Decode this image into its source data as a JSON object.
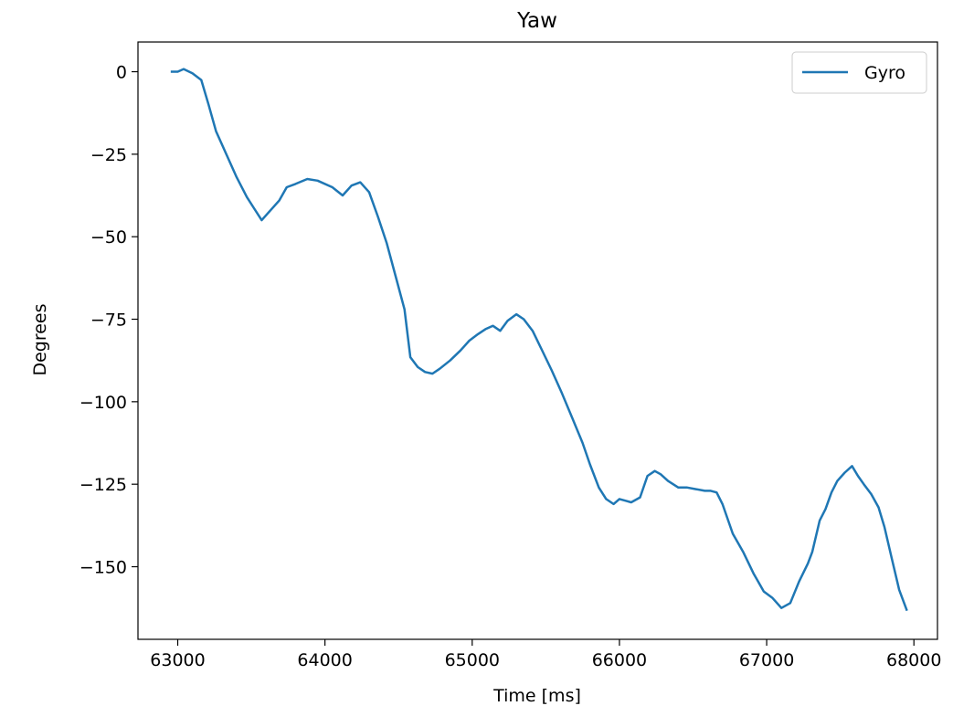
{
  "chart_data": {
    "type": "line",
    "title": "Yaw",
    "xlabel": "Time [ms]",
    "ylabel": "Degrees",
    "xlim": [
      62730,
      68160
    ],
    "ylim": [
      -172,
      9
    ],
    "xticks": [
      63000,
      64000,
      65000,
      66000,
      67000,
      68000
    ],
    "xtick_labels": [
      "63000",
      "64000",
      "65000",
      "66000",
      "67000",
      "68000"
    ],
    "yticks": [
      0,
      -25,
      -50,
      -75,
      -100,
      -125,
      -150
    ],
    "ytick_labels": [
      "0",
      "−25",
      "−50",
      "−75",
      "−100",
      "−125",
      "−150"
    ],
    "grid": false,
    "legend_position": "top-right",
    "series": [
      {
        "name": "Gyro",
        "color": "#1f77b4",
        "x": [
          62960,
          63000,
          63040,
          63100,
          63160,
          63210,
          63260,
          63330,
          63400,
          63470,
          63520,
          63570,
          63630,
          63690,
          63740,
          63800,
          63880,
          63950,
          64050,
          64120,
          64180,
          64240,
          64300,
          64360,
          64420,
          64480,
          64540,
          64580,
          64630,
          64680,
          64730,
          64780,
          64850,
          64920,
          64980,
          65040,
          65090,
          65140,
          65190,
          65240,
          65300,
          65350,
          65410,
          65470,
          65540,
          65610,
          65680,
          65750,
          65800,
          65860,
          65910,
          65960,
          66000,
          66040,
          66080,
          66140,
          66190,
          66240,
          66280,
          66330,
          66400,
          66460,
          66520,
          66580,
          66620,
          66660,
          66700,
          66770,
          66840,
          66910,
          66980,
          67040,
          67100,
          67160,
          67220,
          67280,
          67310,
          67360,
          67400,
          67440,
          67480,
          67530,
          67580,
          67620,
          67660,
          67710,
          67760,
          67800,
          67850,
          67900,
          67950
        ],
        "y": [
          0,
          0,
          0.8,
          -0.5,
          -2.5,
          -10,
          -18,
          -25,
          -32,
          -38,
          -41.5,
          -45,
          -42,
          -39,
          -35,
          -34,
          -32.5,
          -33,
          -35,
          -37.5,
          -34.5,
          -33.5,
          -36.5,
          -44,
          -52,
          -62,
          -72,
          -86.5,
          -89.5,
          -91,
          -91.5,
          -90,
          -87.5,
          -84.5,
          -81.5,
          -79.5,
          -78,
          -77,
          -78.5,
          -75.5,
          -73.5,
          -75,
          -78.5,
          -84,
          -90.5,
          -97.5,
          -105,
          -112.5,
          -119,
          -126,
          -129.5,
          -131,
          -129.5,
          -130,
          -130.5,
          -129,
          -122.5,
          -121,
          -122,
          -124,
          -126,
          -126,
          -126.5,
          -127,
          -127,
          -127.5,
          -131,
          -140,
          -145.5,
          -152,
          -157.5,
          -159.5,
          -162.5,
          -161,
          -154.5,
          -149,
          -145.5,
          -136,
          -132.5,
          -127.5,
          -124,
          -121.5,
          -119.5,
          -122.5,
          -125,
          -128,
          -132,
          -138,
          -147.5,
          -157,
          -163
        ]
      }
    ]
  }
}
